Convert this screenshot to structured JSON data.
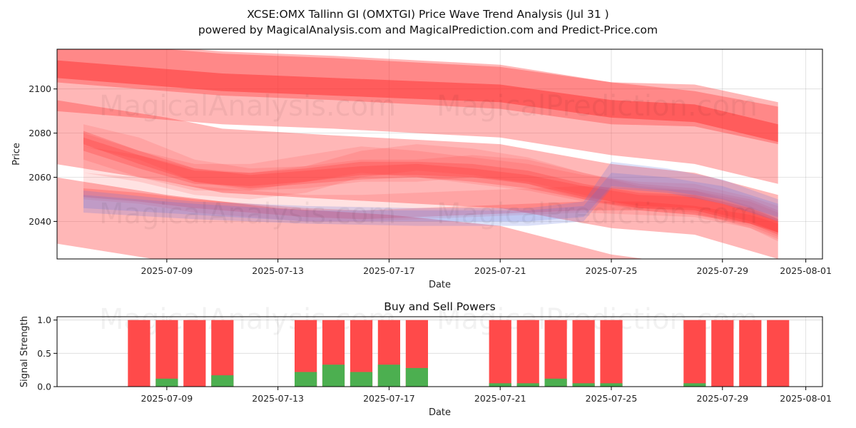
{
  "titles": {
    "main": "XCSE:OMX Tallinn GI (OMXTGI) Price Wave Trend Analysis (Jul 31 )",
    "sub": "powered by MagicalAnalysis.com and MagicalPrediction.com and Predict-Price.com"
  },
  "watermarks": [
    "MagicalAnalysis.com",
    "MagicalPrediction.com"
  ],
  "colors": {
    "red": "#ff3030",
    "blue": "#6070e0",
    "buy": "#4caf50",
    "sell": "#ff4a4a"
  },
  "chart_data": [
    {
      "type": "area",
      "title": "",
      "xlabel": "Date",
      "ylabel": "Price",
      "x_ticks": [
        "2025-07-09",
        "2025-07-13",
        "2025-07-17",
        "2025-07-21",
        "2025-07-25",
        "2025-07-29",
        "2025-08-01"
      ],
      "y_ticks": [
        2040,
        2060,
        2080,
        2100
      ],
      "xlim": [
        "2025-07-05",
        "2025-08-01"
      ],
      "ylim": [
        2023,
        2118
      ],
      "grid": true,
      "bands": [
        {
          "color": "red",
          "opacity": 0.35,
          "points": [
            [
              "2025-07-05",
              2103,
              2122
            ],
            [
              "2025-07-11",
              2097,
              2116
            ],
            [
              "2025-07-15",
              2095,
              2114
            ],
            [
              "2025-07-21",
              2091,
              2110
            ],
            [
              "2025-07-25",
              2084,
              2103
            ],
            [
              "2025-07-28",
              2083,
              2102
            ],
            [
              "2025-07-31",
              2075,
              2094
            ]
          ]
        },
        {
          "color": "red",
          "opacity": 0.35,
          "points": [
            [
              "2025-07-05",
              2090,
              2123
            ],
            [
              "2025-07-11",
              2084,
              2117
            ],
            [
              "2025-07-15",
              2082,
              2115
            ],
            [
              "2025-07-21",
              2078,
              2111
            ],
            [
              "2025-07-25",
              2070,
              2103
            ],
            [
              "2025-07-28",
              2066,
              2099
            ],
            [
              "2025-07-31",
              2057,
              2092
            ]
          ]
        },
        {
          "color": "red",
          "opacity": 0.35,
          "points": [
            [
              "2025-07-05",
              2066,
              2095
            ],
            [
              "2025-07-09",
              2058,
              2087
            ],
            [
              "2025-07-11",
              2053,
              2082
            ],
            [
              "2025-07-15",
              2050,
              2079
            ],
            [
              "2025-07-21",
              2046,
              2075
            ],
            [
              "2025-07-25",
              2037,
              2066
            ],
            [
              "2025-07-28",
              2034,
              2062
            ],
            [
              "2025-07-31",
              2023,
              2052
            ]
          ]
        },
        {
          "color": "red",
          "opacity": 0.35,
          "points": [
            [
              "2025-07-05",
              2030,
              2060
            ],
            [
              "2025-07-09",
              2022,
              2052
            ],
            [
              "2025-07-13",
              2016,
              2046
            ],
            [
              "2025-07-17",
              2013,
              2043
            ],
            [
              "2025-07-21",
              2008,
              2038
            ],
            [
              "2025-07-25",
              1995,
              2025
            ],
            [
              "2025-07-28",
              1990,
              2020
            ],
            [
              "2025-07-31",
              1980,
              2010
            ]
          ]
        },
        {
          "color": "red",
          "opacity": 0.5,
          "points": [
            [
              "2025-07-05",
              2105,
              2113
            ],
            [
              "2025-07-11",
              2099,
              2107
            ],
            [
              "2025-07-15",
              2097,
              2105
            ],
            [
              "2025-07-21",
              2094,
              2102
            ],
            [
              "2025-07-25",
              2087,
              2095
            ],
            [
              "2025-07-28",
              2085,
              2093
            ],
            [
              "2025-07-31",
              2076,
              2084
            ]
          ]
        },
        {
          "color": "red",
          "opacity": 0.14,
          "points": [
            [
              "2025-07-06",
              2074,
              2084
            ],
            [
              "2025-07-08",
              2068,
              2078
            ],
            [
              "2025-07-10",
              2058,
              2068
            ],
            [
              "2025-07-12",
              2054,
              2064
            ],
            [
              "2025-07-14",
              2055,
              2065
            ],
            [
              "2025-07-16",
              2058,
              2068
            ],
            [
              "2025-07-18",
              2058,
              2068
            ],
            [
              "2025-07-20",
              2060,
              2070
            ],
            [
              "2025-07-22",
              2058,
              2068
            ],
            [
              "2025-07-24",
              2052,
              2062
            ],
            [
              "2025-07-26",
              2046,
              2056
            ],
            [
              "2025-07-28",
              2044,
              2054
            ],
            [
              "2025-07-30",
              2037,
              2047
            ],
            [
              "2025-07-31",
              2031,
              2041
            ]
          ]
        },
        {
          "color": "red",
          "opacity": 0.14,
          "points": [
            [
              "2025-07-06",
              2062,
              2074
            ],
            [
              "2025-07-08",
              2058,
              2070
            ],
            [
              "2025-07-10",
              2052,
              2064
            ],
            [
              "2025-07-12",
              2050,
              2062
            ],
            [
              "2025-07-14",
              2053,
              2065
            ],
            [
              "2025-07-16",
              2060,
              2072
            ],
            [
              "2025-07-18",
              2063,
              2075
            ],
            [
              "2025-07-20",
              2061,
              2073
            ],
            [
              "2025-07-22",
              2057,
              2069
            ],
            [
              "2025-07-24",
              2050,
              2062
            ],
            [
              "2025-07-26",
              2045,
              2057
            ],
            [
              "2025-07-28",
              2043,
              2055
            ],
            [
              "2025-07-30",
              2038,
              2050
            ],
            [
              "2025-07-31",
              2033,
              2045
            ]
          ]
        },
        {
          "color": "red",
          "opacity": 0.14,
          "points": [
            [
              "2025-07-06",
              2068,
              2080
            ],
            [
              "2025-07-08",
              2060,
              2072
            ],
            [
              "2025-07-10",
              2054,
              2066
            ],
            [
              "2025-07-12",
              2054,
              2066
            ],
            [
              "2025-07-14",
              2058,
              2070
            ],
            [
              "2025-07-16",
              2062,
              2074
            ],
            [
              "2025-07-18",
              2060,
              2072
            ],
            [
              "2025-07-20",
              2057,
              2069
            ],
            [
              "2025-07-22",
              2054,
              2066
            ],
            [
              "2025-07-24",
              2049,
              2061
            ],
            [
              "2025-07-26",
              2046,
              2058
            ],
            [
              "2025-07-28",
              2045,
              2057
            ],
            [
              "2025-07-30",
              2039,
              2051
            ],
            [
              "2025-07-31",
              2035,
              2047
            ]
          ]
        },
        {
          "color": "red",
          "opacity": 0.14,
          "points": [
            [
              "2025-07-06",
              2050,
              2062
            ],
            [
              "2025-07-08",
              2048,
              2060
            ],
            [
              "2025-07-10",
              2044,
              2056
            ],
            [
              "2025-07-12",
              2042,
              2054
            ],
            [
              "2025-07-14",
              2040,
              2052
            ],
            [
              "2025-07-16",
              2040,
              2052
            ],
            [
              "2025-07-18",
              2041,
              2053
            ],
            [
              "2025-07-20",
              2042,
              2054
            ],
            [
              "2025-07-22",
              2043,
              2055
            ],
            [
              "2025-07-24",
              2044,
              2056
            ],
            [
              "2025-07-26",
              2043,
              2055
            ],
            [
              "2025-07-28",
              2042,
              2054
            ],
            [
              "2025-07-30",
              2037,
              2049
            ],
            [
              "2025-07-31",
              2032,
              2044
            ]
          ]
        },
        {
          "color": "red",
          "opacity": 0.25,
          "points": [
            [
              "2025-07-06",
              2072,
              2078
            ],
            [
              "2025-07-08",
              2064,
              2070
            ],
            [
              "2025-07-10",
              2057,
              2063
            ],
            [
              "2025-07-12",
              2056,
              2062
            ],
            [
              "2025-07-14",
              2058,
              2064
            ],
            [
              "2025-07-16",
              2061,
              2067
            ],
            [
              "2025-07-18",
              2061,
              2067
            ],
            [
              "2025-07-20",
              2060,
              2066
            ],
            [
              "2025-07-22",
              2057,
              2063
            ],
            [
              "2025-07-24",
              2051,
              2057
            ],
            [
              "2025-07-26",
              2047,
              2053
            ],
            [
              "2025-07-28",
              2046,
              2052
            ],
            [
              "2025-07-30",
              2040,
              2046
            ],
            [
              "2025-07-31",
              2035,
              2041
            ]
          ]
        },
        {
          "color": "red",
          "opacity": 0.25,
          "points": [
            [
              "2025-07-06",
              2075,
              2081
            ],
            [
              "2025-07-08",
              2066,
              2072
            ],
            [
              "2025-07-10",
              2058,
              2064
            ],
            [
              "2025-07-12",
              2055,
              2061
            ],
            [
              "2025-07-14",
              2057,
              2063
            ],
            [
              "2025-07-16",
              2059,
              2065
            ],
            [
              "2025-07-18",
              2060,
              2066
            ],
            [
              "2025-07-20",
              2058,
              2064
            ],
            [
              "2025-07-22",
              2055,
              2061
            ],
            [
              "2025-07-24",
              2050,
              2056
            ],
            [
              "2025-07-26",
              2046,
              2052
            ],
            [
              "2025-07-28",
              2045,
              2051
            ],
            [
              "2025-07-30",
              2039,
              2045
            ],
            [
              "2025-07-31",
              2034,
              2040
            ]
          ]
        },
        {
          "color": "red",
          "opacity": 0.25,
          "points": [
            [
              "2025-07-06",
              2051,
              2055
            ],
            [
              "2025-07-08",
              2049,
              2053
            ],
            [
              "2025-07-10",
              2046,
              2050
            ],
            [
              "2025-07-12",
              2044,
              2048
            ],
            [
              "2025-07-14",
              2042,
              2046
            ],
            [
              "2025-07-16",
              2041,
              2045
            ],
            [
              "2025-07-18",
              2042,
              2046
            ],
            [
              "2025-07-20",
              2043,
              2047
            ],
            [
              "2025-07-22",
              2044,
              2048
            ],
            [
              "2025-07-24",
              2045,
              2049
            ],
            [
              "2025-07-26",
              2045,
              2049
            ],
            [
              "2025-07-28",
              2043,
              2047
            ],
            [
              "2025-07-30",
              2039,
              2043
            ],
            [
              "2025-07-31",
              2035,
              2039
            ]
          ]
        },
        {
          "color": "blue",
          "opacity": 0.22,
          "points": [
            [
              "2025-07-06",
              2044,
              2054
            ],
            [
              "2025-07-10",
              2041,
              2049
            ],
            [
              "2025-07-14",
              2039,
              2047
            ],
            [
              "2025-07-18",
              2038,
              2046
            ],
            [
              "2025-07-22",
              2038,
              2046
            ],
            [
              "2025-07-24",
              2040,
              2049
            ],
            [
              "2025-07-25",
              2055,
              2067
            ],
            [
              "2025-07-27",
              2053,
              2064
            ],
            [
              "2025-07-29",
              2048,
              2059
            ],
            [
              "2025-07-31",
              2040,
              2050
            ]
          ]
        },
        {
          "color": "blue",
          "opacity": 0.22,
          "points": [
            [
              "2025-07-06",
              2046,
              2052
            ],
            [
              "2025-07-10",
              2043,
              2048
            ],
            [
              "2025-07-14",
              2040,
              2045
            ],
            [
              "2025-07-18",
              2040,
              2045
            ],
            [
              "2025-07-22",
              2040,
              2045
            ],
            [
              "2025-07-24",
              2042,
              2047
            ],
            [
              "2025-07-25",
              2056,
              2062
            ],
            [
              "2025-07-27",
              2054,
              2060
            ],
            [
              "2025-07-29",
              2050,
              2056
            ],
            [
              "2025-07-31",
              2042,
              2048
            ]
          ]
        }
      ]
    },
    {
      "type": "bar",
      "title": "Buy and Sell Powers",
      "xlabel": "Date",
      "ylabel": "Signal Strength",
      "x_ticks": [
        "2025-07-09",
        "2025-07-13",
        "2025-07-17",
        "2025-07-21",
        "2025-07-25",
        "2025-07-29",
        "2025-08-01"
      ],
      "y_ticks": [
        "0.0",
        "0.5",
        "1.0"
      ],
      "xlim": [
        "2025-07-05",
        "2025-08-01"
      ],
      "ylim": [
        0,
        1.05
      ],
      "grid": true,
      "series": [
        {
          "name": "Buy",
          "color": "buy"
        },
        {
          "name": "Sell",
          "color": "sell"
        }
      ],
      "bars": [
        {
          "date": "2025-07-08",
          "buy": 0.0
        },
        {
          "date": "2025-07-09",
          "buy": 0.12
        },
        {
          "date": "2025-07-10",
          "buy": 0.0
        },
        {
          "date": "2025-07-11",
          "buy": 0.17
        },
        {
          "date": "2025-07-14",
          "buy": 0.22
        },
        {
          "date": "2025-07-15",
          "buy": 0.33
        },
        {
          "date": "2025-07-16",
          "buy": 0.22
        },
        {
          "date": "2025-07-17",
          "buy": 0.33
        },
        {
          "date": "2025-07-18",
          "buy": 0.28
        },
        {
          "date": "2025-07-21",
          "buy": 0.05
        },
        {
          "date": "2025-07-22",
          "buy": 0.05
        },
        {
          "date": "2025-07-23",
          "buy": 0.12
        },
        {
          "date": "2025-07-24",
          "buy": 0.05
        },
        {
          "date": "2025-07-25",
          "buy": 0.05
        },
        {
          "date": "2025-07-28",
          "buy": 0.05
        },
        {
          "date": "2025-07-29",
          "buy": 0.0
        },
        {
          "date": "2025-07-30",
          "buy": 0.0
        },
        {
          "date": "2025-07-31",
          "buy": 0.0
        }
      ]
    }
  ]
}
